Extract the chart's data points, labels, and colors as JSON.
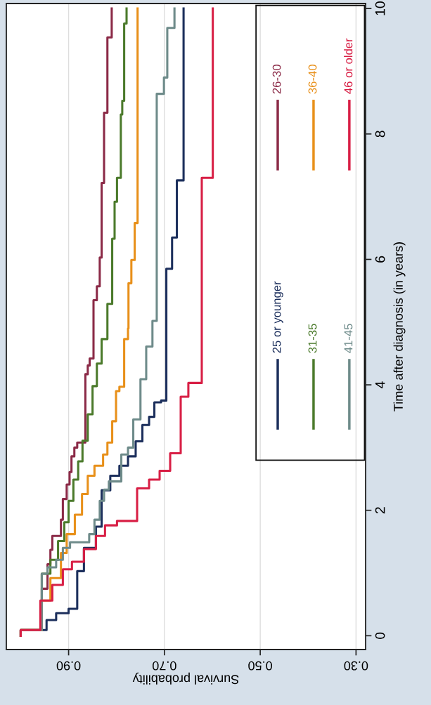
{
  "chart_data": {
    "type": "step",
    "orientation": "horizontal",
    "xlabel": "Survival probability",
    "ylabel": "Time after diagnosis (in years)",
    "xlim": [
      1.03,
      0.28
    ],
    "ylim": [
      -0.22,
      10.08
    ],
    "xticks": [
      {
        "value": 0.9,
        "label": "0.90"
      },
      {
        "value": 0.7,
        "label": "0.70"
      },
      {
        "value": 0.5,
        "label": "0.50"
      },
      {
        "value": 0.3,
        "label": "0.30"
      }
    ],
    "yticks": [
      0,
      2,
      4,
      6,
      8,
      10
    ],
    "grid": "x",
    "legend": "top right",
    "series": [
      {
        "name": "25 or younger",
        "color": "#1c2f5c",
        "x": [
          0,
          0.09,
          0.25,
          0.36,
          0.43,
          1.03,
          1.4,
          1.74,
          2.32,
          2.55,
          2.71,
          2.86,
          3.1,
          3.36,
          3.49,
          3.72,
          3.75,
          5.85,
          6.35,
          7.26,
          10.0
        ],
        "values": [
          1.0,
          0.946,
          0.926,
          0.9,
          0.882,
          0.868,
          0.843,
          0.831,
          0.813,
          0.794,
          0.776,
          0.76,
          0.746,
          0.732,
          0.721,
          0.707,
          0.696,
          0.684,
          0.674,
          0.66,
          0.66
        ]
      },
      {
        "name": "26-30",
        "color": "#8b2a47",
        "x": [
          0,
          0.09,
          0.75,
          1.14,
          1.37,
          1.59,
          1.85,
          2.18,
          2.41,
          2.61,
          2.86,
          3.0,
          3.08,
          4.17,
          4.31,
          4.42,
          5.35,
          5.57,
          6.03,
          7.22,
          8.34,
          9.54,
          10.0
        ],
        "values": [
          1.0,
          0.956,
          0.944,
          0.938,
          0.934,
          0.916,
          0.912,
          0.904,
          0.898,
          0.894,
          0.888,
          0.882,
          0.865,
          0.86,
          0.856,
          0.848,
          0.841,
          0.835,
          0.831,
          0.826,
          0.819,
          0.81,
          0.81
        ]
      },
      {
        "name": "31-35",
        "color": "#4b7a2b",
        "x": [
          0,
          0.09,
          0.99,
          1.21,
          1.51,
          1.81,
          2.15,
          2.49,
          2.78,
          3.11,
          3.53,
          3.98,
          4.34,
          4.73,
          5.29,
          6.33,
          6.92,
          7.3,
          8.31,
          8.53,
          9.76,
          10.0
        ],
        "values": [
          1.0,
          0.956,
          0.938,
          0.922,
          0.909,
          0.9,
          0.89,
          0.88,
          0.871,
          0.86,
          0.85,
          0.841,
          0.831,
          0.819,
          0.809,
          0.804,
          0.799,
          0.791,
          0.788,
          0.784,
          0.779,
          0.779
        ]
      },
      {
        "name": "36-40",
        "color": "#e8901a",
        "x": [
          0,
          0.09,
          0.56,
          0.92,
          1.32,
          1.62,
          1.93,
          2.26,
          2.55,
          2.71,
          2.89,
          3.08,
          3.42,
          3.9,
          3.97,
          4.73,
          4.9,
          5.62,
          5.99,
          6.58,
          10.0
        ],
        "values": [
          1.0,
          0.956,
          0.938,
          0.916,
          0.904,
          0.887,
          0.872,
          0.86,
          0.846,
          0.828,
          0.819,
          0.809,
          0.801,
          0.794,
          0.784,
          0.776,
          0.775,
          0.769,
          0.762,
          0.756,
          0.756
        ]
      },
      {
        "name": "41-45",
        "color": "#6e8b8a",
        "x": [
          0,
          0.09,
          0.99,
          1.09,
          1.21,
          1.4,
          1.49,
          1.62,
          1.85,
          2.15,
          2.33,
          2.46,
          2.89,
          3.0,
          3.45,
          4.09,
          4.61,
          5.02,
          8.64,
          8.9,
          9.69,
          10.0
        ],
        "values": [
          1.0,
          0.956,
          0.944,
          0.926,
          0.912,
          0.897,
          0.857,
          0.846,
          0.835,
          0.826,
          0.816,
          0.79,
          0.776,
          0.765,
          0.75,
          0.738,
          0.725,
          0.716,
          0.701,
          0.694,
          0.679,
          0.679
        ]
      },
      {
        "name": "46 or older",
        "color": "#d81f45",
        "x": [
          0,
          0.09,
          0.56,
          0.81,
          1.06,
          1.18,
          1.38,
          1.59,
          1.76,
          1.83,
          2.35,
          2.49,
          2.63,
          2.91,
          3.81,
          4.03,
          7.3,
          10.0
        ],
        "values": [
          1.0,
          0.959,
          0.934,
          0.912,
          0.893,
          0.868,
          0.843,
          0.824,
          0.799,
          0.757,
          0.732,
          0.71,
          0.688,
          0.666,
          0.65,
          0.622,
          0.599,
          0.599
        ]
      }
    ]
  }
}
